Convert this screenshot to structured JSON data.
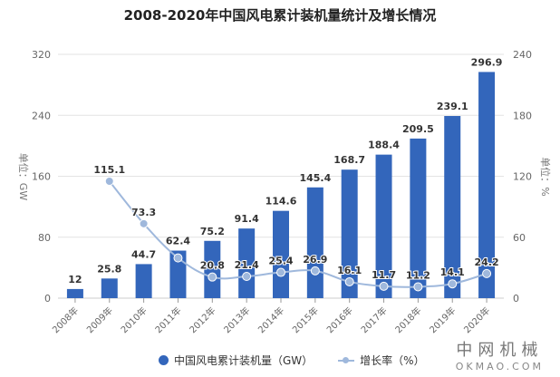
{
  "title": "2008-2020年中国风电累计装机量统计及增长情况",
  "axes": {
    "left_label": "单位：GW",
    "right_label": "单位：%",
    "left_ticks": [
      "0",
      "80",
      "160",
      "240",
      "320"
    ],
    "right_ticks": [
      "0",
      "60",
      "120",
      "180",
      "240"
    ]
  },
  "legend": {
    "series1": "中国风电累计装机量（GW）",
    "series2": "增长率（%）"
  },
  "brand": {
    "cn": "中网机械",
    "en": "OKMAO.COM"
  },
  "colors": {
    "bar": "#3366bb",
    "line": "#9fb8dc",
    "grid": "#e3e3e3"
  },
  "chart_data": {
    "type": "bar+line",
    "title": "2008-2020年中国风电累计装机量统计及增长情况",
    "categories": [
      "2008年",
      "2009年",
      "2010年",
      "2011年",
      "2012年",
      "2013年",
      "2014年",
      "2015年",
      "2016年",
      "2017年",
      "2018年",
      "2019年",
      "2020年"
    ],
    "series": [
      {
        "name": "中国风电累计装机量（GW）",
        "type": "bar",
        "axis": "left",
        "values": [
          12,
          25.8,
          44.7,
          62.4,
          75.2,
          91.4,
          114.6,
          145.4,
          168.7,
          188.4,
          209.5,
          239.1,
          296.9
        ]
      },
      {
        "name": "增长率（%）",
        "type": "line",
        "axis": "right",
        "values": [
          null,
          115.1,
          73.3,
          39.6,
          20.8,
          21.4,
          25.4,
          26.9,
          16.1,
          11.7,
          11.2,
          14.1,
          24.2
        ],
        "labels": [
          "",
          "115.1",
          "73.3",
          "",
          "20.8",
          "21.4",
          "25.4",
          "26.9",
          "16.1",
          "11.7",
          "11.2",
          "14.1",
          "24.2"
        ]
      }
    ],
    "ylabel": "单位：GW",
    "y2label": "单位：%",
    "ylim": [
      0,
      320
    ],
    "y2lim": [
      0,
      240
    ],
    "grid": true,
    "legend_position": "bottom"
  }
}
